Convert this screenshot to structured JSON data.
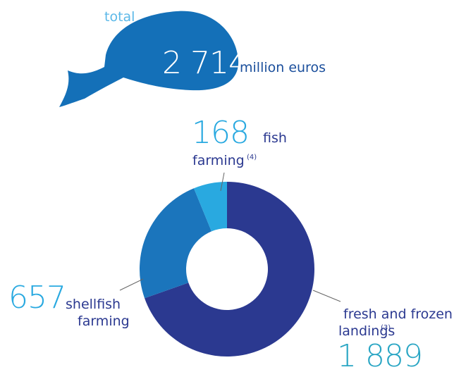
{
  "chart_data": {
    "type": "pie",
    "total_label": "total",
    "total": "2 714",
    "unit": "million euros",
    "categories": [
      [
        "fresh and frozen",
        "landings"
      ],
      [
        "shellfish",
        "farming"
      ],
      [
        "fish",
        "farming"
      ]
    ],
    "notes": [
      "(3)",
      null,
      "(4)"
    ],
    "values": [
      1889,
      657,
      168
    ],
    "value_labels": [
      "1 889",
      "657",
      "168"
    ],
    "colors": [
      "#2b3990",
      "#1b75bc",
      "#29a9e0"
    ]
  }
}
